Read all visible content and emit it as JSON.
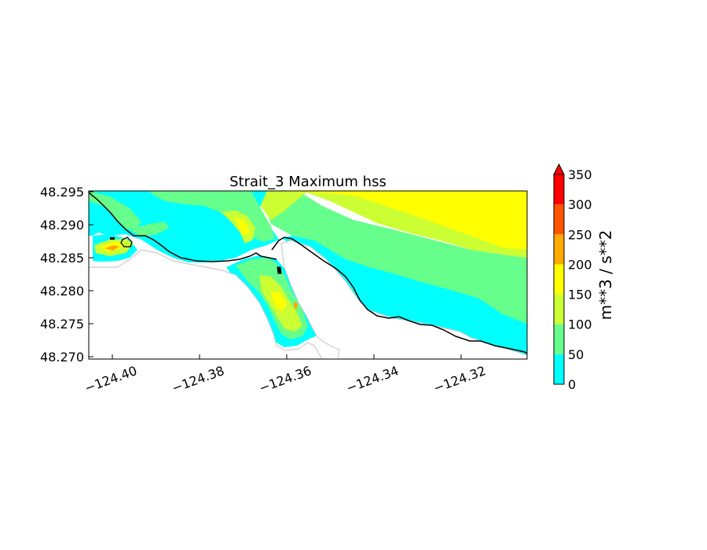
{
  "title": "Strait_3 Maximum hss",
  "map": {
    "x_ticks": [
      "−124.40",
      "−124.38",
      "−124.36",
      "−124.34",
      "−124.32"
    ],
    "y_ticks": [
      "48.295",
      "48.290",
      "48.285",
      "48.280",
      "48.275",
      "48.270"
    ],
    "land_color": "#ffffff",
    "coastline_color": "#000000",
    "contour_outline_color": "#cccccc"
  },
  "colorbar": {
    "label": "m**3 / s**2",
    "levels": [
      "0",
      "50",
      "100",
      "150",
      "200",
      "250",
      "300",
      "350"
    ],
    "colors": [
      "#00ffff",
      "#66ff8c",
      "#ccff33",
      "#ffff00",
      "#ffaa00",
      "#ff5500",
      "#ff0000"
    ],
    "extend": "max"
  }
}
